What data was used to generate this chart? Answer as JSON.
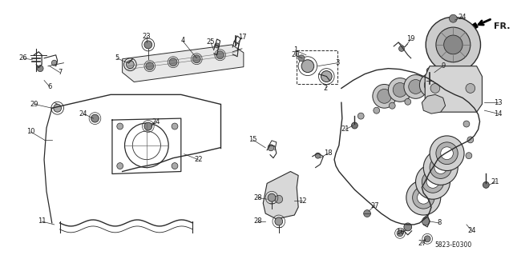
{
  "bg_color": "#ffffff",
  "fig_width": 6.4,
  "fig_height": 3.19,
  "dpi": 100,
  "diagram_code": "5823-E0300",
  "line_color": "#2a2a2a",
  "text_color": "#1a1a1a",
  "gray": "#888888",
  "light_gray": "#bbbbbb"
}
